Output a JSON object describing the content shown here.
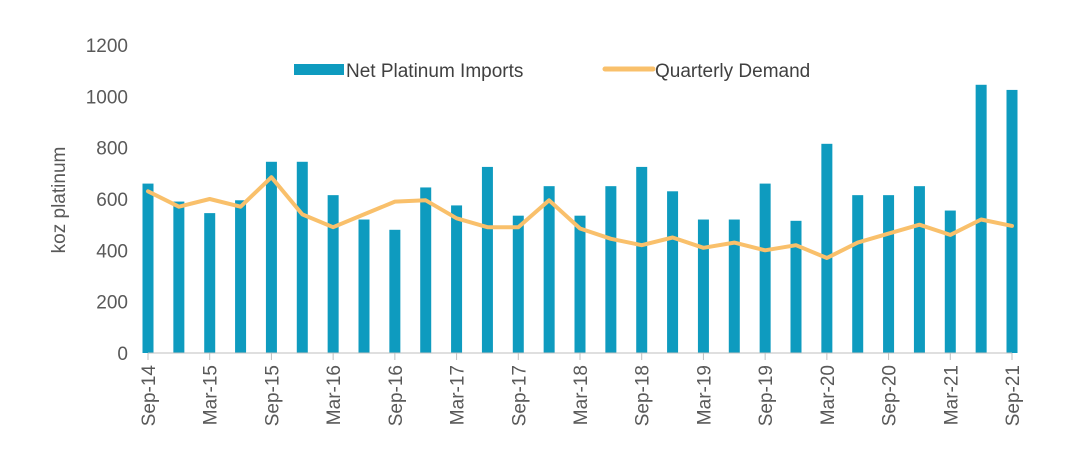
{
  "chart_data": {
    "type": "bar",
    "title": "",
    "xlabel": "",
    "ylabel": "koz platinum",
    "ylim": [
      0,
      1200
    ],
    "yticks": [
      0,
      200,
      400,
      600,
      800,
      1000,
      1200
    ],
    "grid": false,
    "legend_position": "top-center",
    "categories": [
      "Sep-14",
      "Dec-14",
      "Mar-15",
      "Jun-15",
      "Sep-15",
      "Dec-15",
      "Mar-16",
      "Jun-16",
      "Sep-16",
      "Dec-16",
      "Mar-17",
      "Jun-17",
      "Sep-17",
      "Dec-17",
      "Mar-18",
      "Jun-18",
      "Sep-18",
      "Dec-18",
      "Mar-19",
      "Jun-19",
      "Sep-19",
      "Dec-19",
      "Mar-20",
      "Jun-20",
      "Sep-20",
      "Dec-20",
      "Mar-21",
      "Jun-21",
      "Sep-21"
    ],
    "x_tick_labels": [
      "Sep-14",
      "Mar-15",
      "Sep-15",
      "Mar-16",
      "Sep-16",
      "Mar-17",
      "Sep-17",
      "Mar-18",
      "Sep-18",
      "Mar-19",
      "Sep-19",
      "Mar-20",
      "Sep-20",
      "Mar-21",
      "Sep-21"
    ],
    "series": [
      {
        "name": "Net Platinum Imports",
        "type": "bar",
        "color": "#0e9bbf",
        "values": [
          660,
          590,
          545,
          595,
          745,
          745,
          615,
          520,
          480,
          645,
          575,
          725,
          535,
          650,
          535,
          650,
          725,
          630,
          520,
          520,
          660,
          515,
          815,
          615,
          615,
          650,
          555,
          1045,
          1025
        ]
      },
      {
        "name": "Quarterly Demand",
        "type": "line",
        "color": "#f9c06b",
        "values": [
          630,
          570,
          600,
          570,
          685,
          540,
          490,
          540,
          590,
          595,
          525,
          490,
          490,
          595,
          485,
          445,
          420,
          450,
          410,
          430,
          400,
          420,
          370,
          430,
          465,
          500,
          460,
          520,
          495
        ]
      }
    ]
  }
}
